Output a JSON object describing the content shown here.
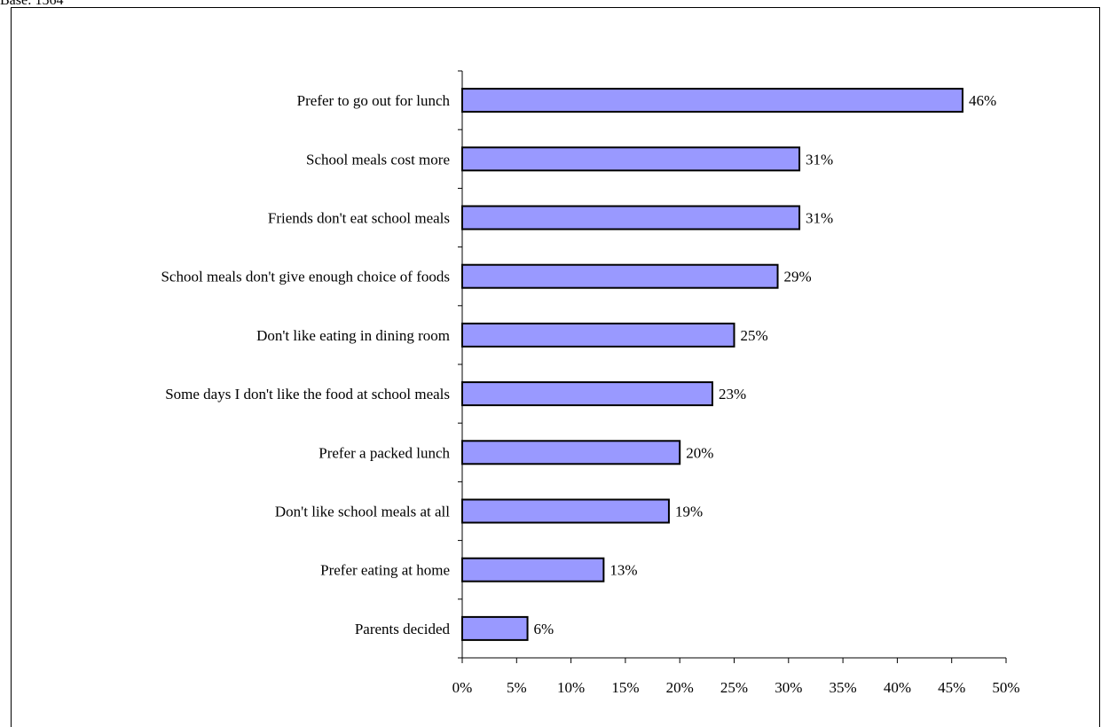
{
  "header": {
    "base_note": "Base: 1564"
  },
  "chart_data": {
    "type": "bar",
    "orientation": "horizontal",
    "categories": [
      "Prefer to go out for lunch",
      "School meals cost more",
      "Friends don't eat school meals",
      "School meals don't give enough choice of foods",
      "Don't like eating in dining room",
      "Some days I don't like the food at school meals",
      "Prefer a packed lunch",
      "Don't like school meals at all",
      "Prefer eating at home",
      "Parents decided"
    ],
    "values": [
      46,
      31,
      31,
      29,
      25,
      23,
      20,
      19,
      13,
      6
    ],
    "value_labels": [
      "46%",
      "31%",
      "31%",
      "29%",
      "25%",
      "23%",
      "20%",
      "19%",
      "13%",
      "6%"
    ],
    "xticks": [
      0,
      5,
      10,
      15,
      20,
      25,
      30,
      35,
      40,
      45,
      50
    ],
    "xtick_labels": [
      "0%",
      "5%",
      "10%",
      "15%",
      "20%",
      "25%",
      "30%",
      "35%",
      "40%",
      "45%",
      "50%"
    ],
    "xlim": [
      0,
      50
    ],
    "bar_color": "#9999ff",
    "bar_border_color": "#000000",
    "grid": false,
    "legend": "none"
  }
}
